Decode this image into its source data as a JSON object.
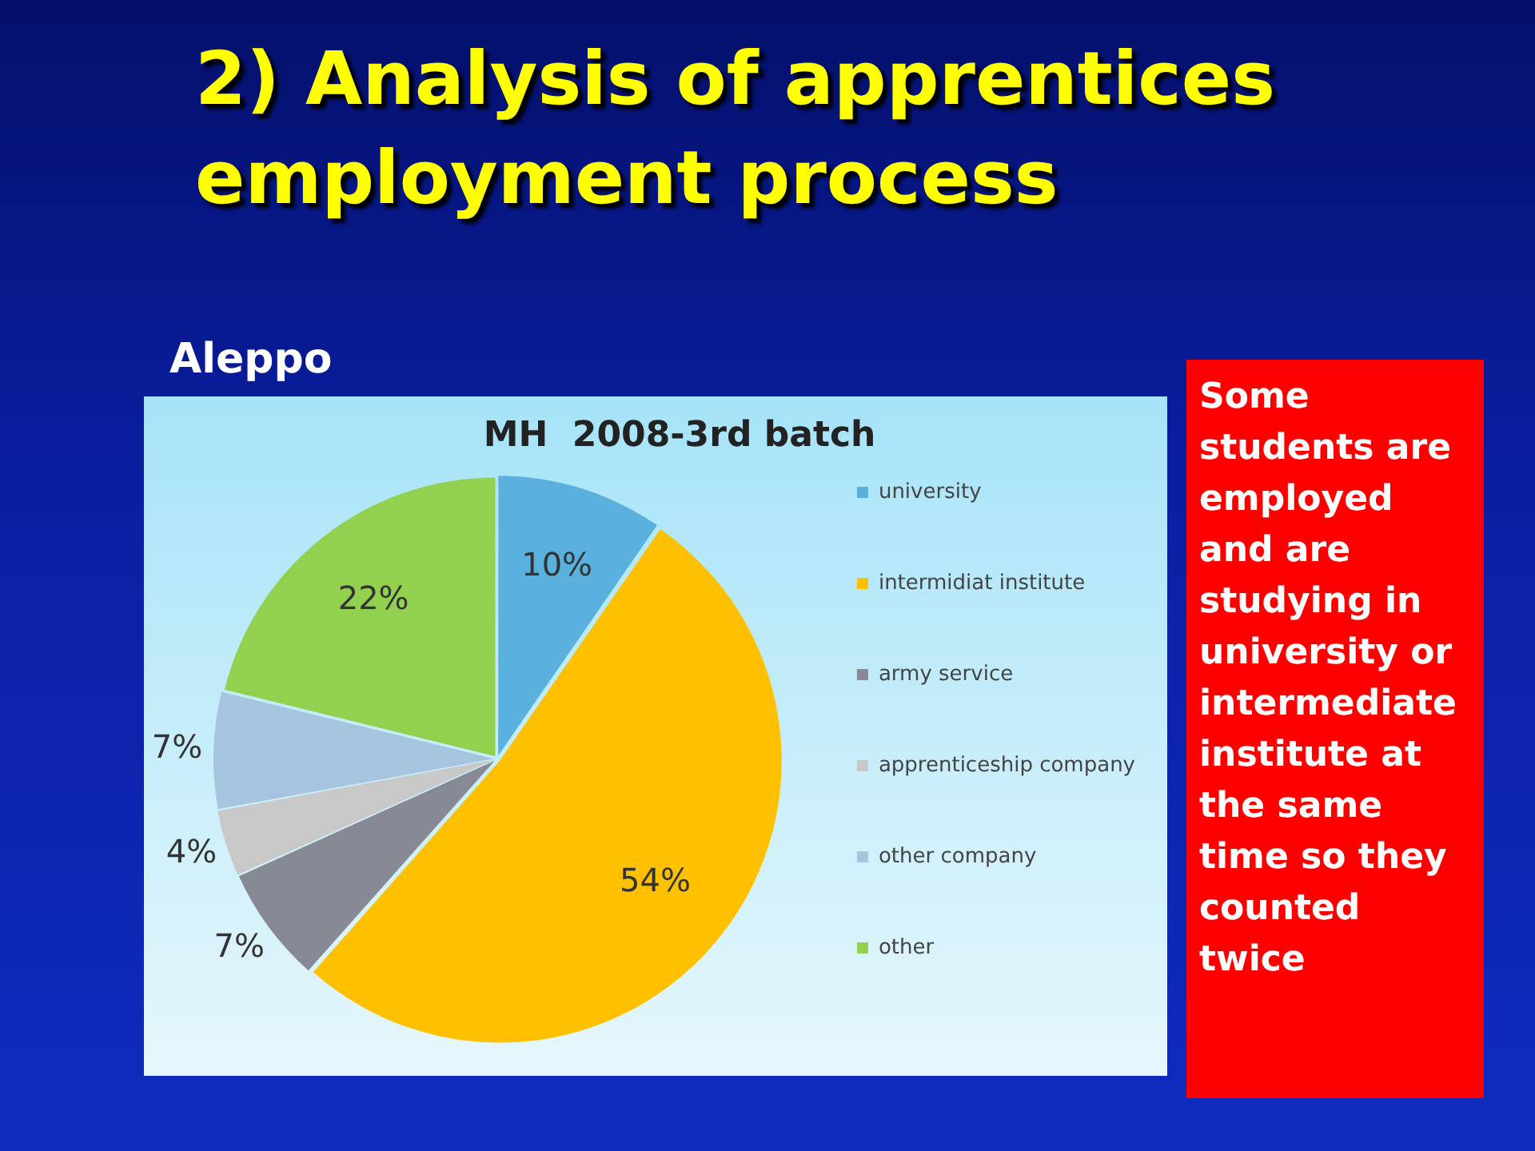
{
  "chart_data": {
    "type": "pie",
    "title": "2) Analysis of apprentices employment process",
    "subtitle": "MH  2008-3rd batch",
    "categories": [
      "university",
      "intermidiat institute",
      "army service",
      "apprenticeship company",
      "other company",
      "other"
    ],
    "values": [
      10,
      54,
      7,
      4,
      7,
      22
    ],
    "value_labels": [
      "10%",
      "54%",
      "7%",
      "4%",
      "7%",
      "22%"
    ],
    "colors": [
      "#5bb1de",
      "#ffc000",
      "#878a94",
      "#c8c8c8",
      "#a7c4df",
      "#92d050"
    ],
    "legend": "right",
    "annotations": [
      "Aleppo",
      "Some students are employed and are studying in university or intermediate institute at the same time so they counted twice"
    ]
  }
}
